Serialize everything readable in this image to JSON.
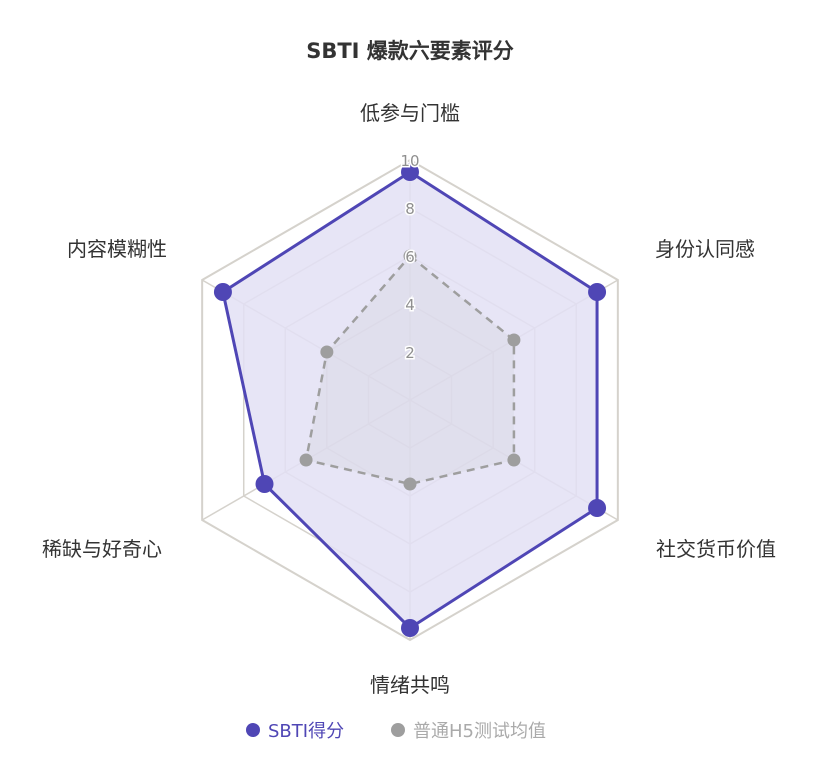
{
  "chart_data": {
    "type": "radar",
    "title": "SBTI 爆款六要素评分",
    "axes": [
      "低参与门槛",
      "身份认同感",
      "社交货币价值",
      "情绪共鸣",
      "稀缺与好奇心",
      "内容模糊性"
    ],
    "rmax": 10,
    "ticks": [
      "2",
      "4",
      "6",
      "8",
      "10"
    ],
    "grid": true,
    "legend_position": "bottom",
    "series": [
      {
        "name": "SBTI得分",
        "values": [
          9.5,
          9,
          9,
          9.5,
          7,
          9
        ],
        "color": "#4f46b5",
        "fill": "#e3e1f5",
        "line_style": "solid"
      },
      {
        "name": "普通H5测试均值",
        "values": [
          6,
          5,
          5,
          3.5,
          5,
          4
        ],
        "color": "#9e9e9e",
        "fill": "#d0cfd8",
        "line_style": "dashed"
      }
    ]
  }
}
